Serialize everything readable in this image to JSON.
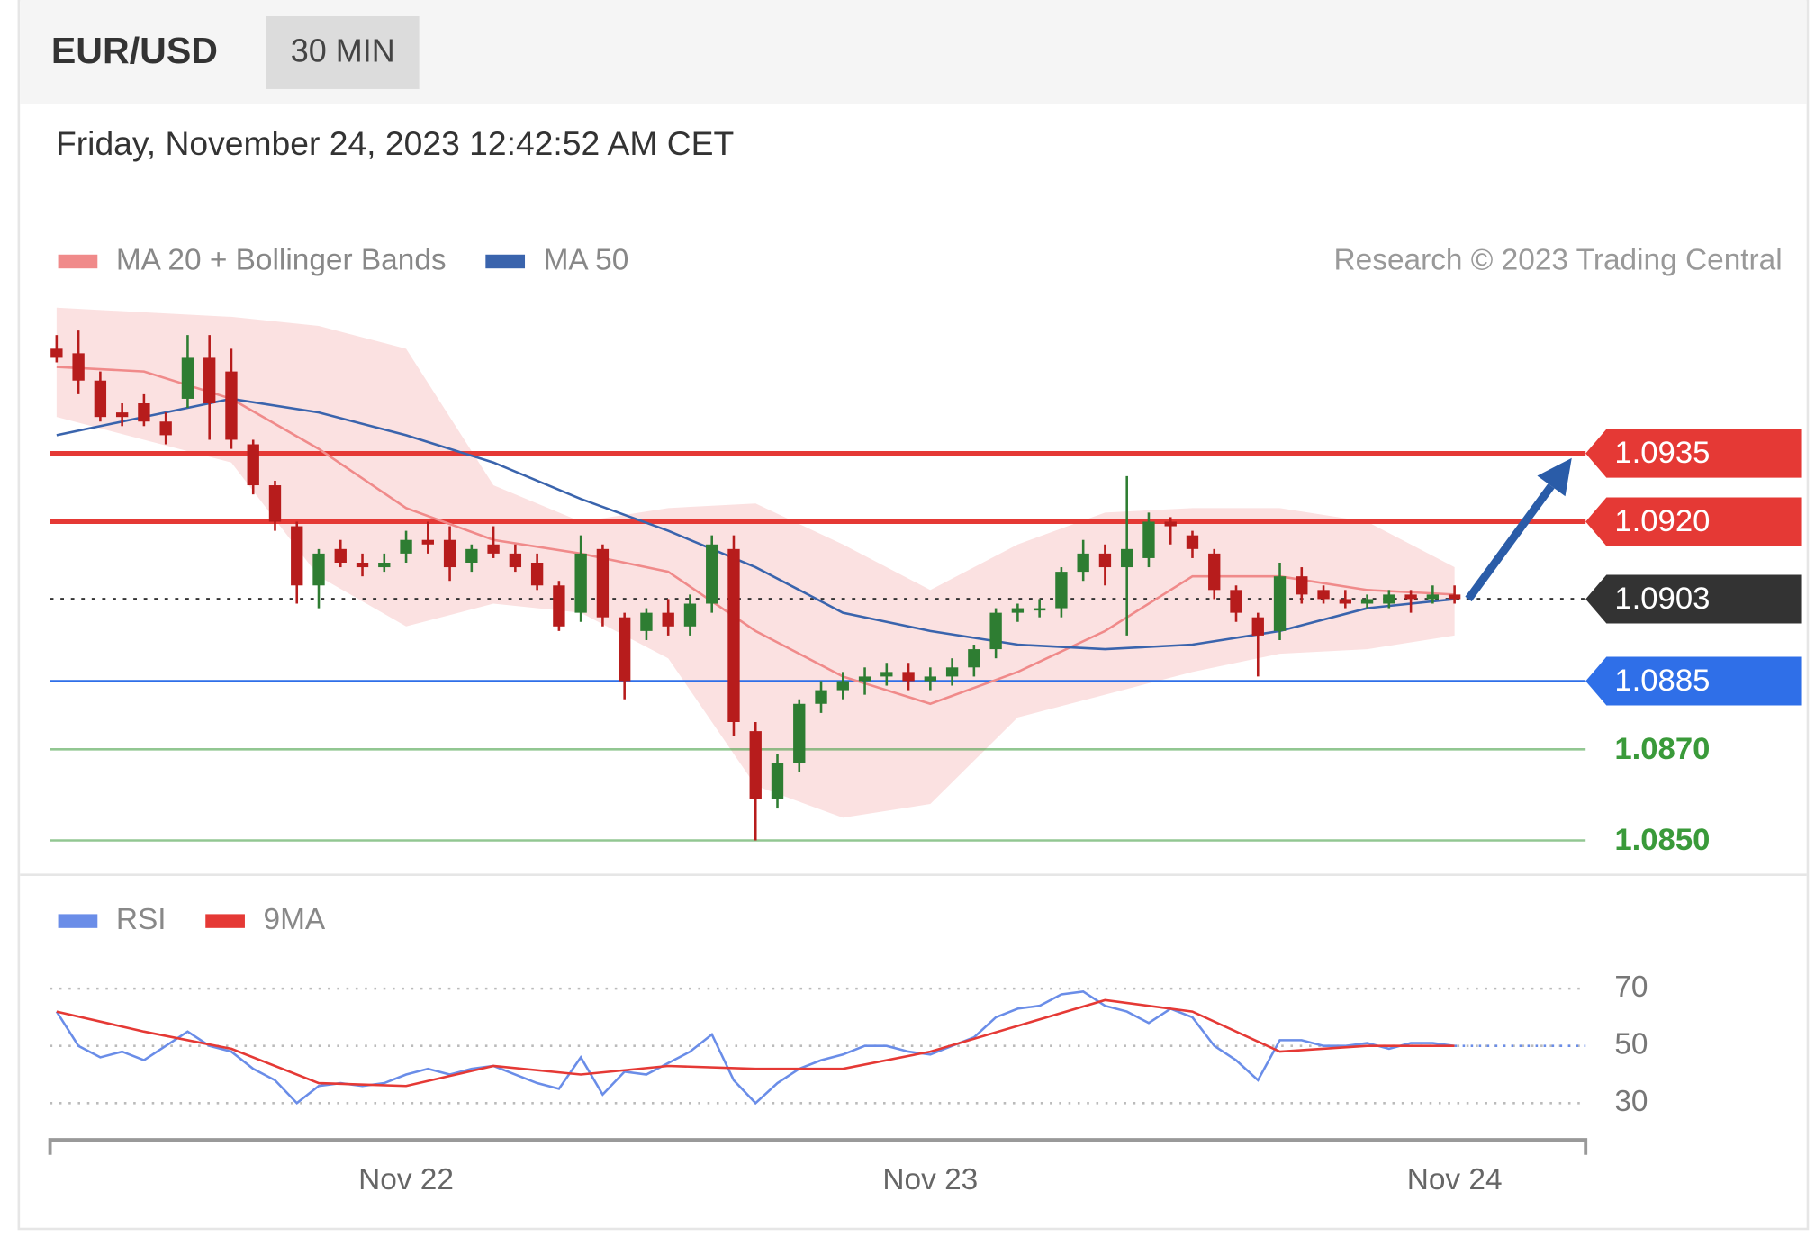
{
  "header": {
    "symbol": "EUR/USD",
    "interval": "30 MIN",
    "timestamp": "Friday, November 24, 2023 12:42:52 AM CET",
    "credit": "Research © 2023 Trading Central"
  },
  "chart_data": [
    {
      "type": "candlestick",
      "up_color": "#2e7d32",
      "down_color": "#b71c1c",
      "ohlc": [
        [
          1.0958,
          1.0961,
          1.0955,
          1.0956
        ],
        [
          1.0957,
          1.0962,
          1.0948,
          1.0951
        ],
        [
          1.0951,
          1.0953,
          1.0942,
          1.0943
        ],
        [
          1.0944,
          1.0946,
          1.0941,
          1.0943
        ],
        [
          1.0946,
          1.0948,
          1.0941,
          1.0942
        ],
        [
          1.0942,
          1.0944,
          1.0937,
          1.0939
        ],
        [
          1.0947,
          1.0961,
          1.0945,
          1.0956
        ],
        [
          1.0956,
          1.0961,
          1.0938,
          1.0946
        ],
        [
          1.0953,
          1.0958,
          1.0936,
          1.0938
        ],
        [
          1.0937,
          1.0938,
          1.0926,
          1.0928
        ],
        [
          1.0928,
          1.0929,
          1.0918,
          1.092
        ],
        [
          1.0919,
          1.092,
          1.0902,
          1.0906
        ],
        [
          1.0906,
          1.0914,
          1.0901,
          1.0913
        ],
        [
          1.0914,
          1.0916,
          1.091,
          1.0911
        ],
        [
          1.0911,
          1.0913,
          1.0908,
          1.091
        ],
        [
          1.091,
          1.0913,
          1.0909,
          1.0911
        ],
        [
          1.0913,
          1.0918,
          1.0911,
          1.0916
        ],
        [
          1.0916,
          1.092,
          1.0913,
          1.0915
        ],
        [
          1.0916,
          1.0919,
          1.0907,
          1.091
        ],
        [
          1.0911,
          1.0915,
          1.0909,
          1.0914
        ],
        [
          1.0915,
          1.0919,
          1.0912,
          1.0913
        ],
        [
          1.0913,
          1.0915,
          1.0909,
          1.091
        ],
        [
          1.0911,
          1.0913,
          1.0905,
          1.0906
        ],
        [
          1.0906,
          1.0907,
          1.0896,
          1.0897
        ],
        [
          1.09,
          1.0917,
          1.0898,
          1.0913
        ],
        [
          1.0914,
          1.0915,
          1.0897,
          1.0899
        ],
        [
          1.0899,
          1.09,
          1.0881,
          1.0885
        ],
        [
          1.0896,
          1.0901,
          1.0894,
          1.09
        ],
        [
          1.09,
          1.0903,
          1.0895,
          1.0897
        ],
        [
          1.0897,
          1.0904,
          1.0895,
          1.0902
        ],
        [
          1.0902,
          1.0917,
          1.09,
          1.0915
        ],
        [
          1.0914,
          1.0917,
          1.0873,
          1.0876
        ],
        [
          1.0874,
          1.0876,
          1.085,
          1.0859
        ],
        [
          1.0859,
          1.0869,
          1.0857,
          1.0867
        ],
        [
          1.0867,
          1.0881,
          1.0865,
          1.088
        ],
        [
          1.088,
          1.0885,
          1.0878,
          1.0883
        ],
        [
          1.0883,
          1.0887,
          1.0881,
          1.0885
        ],
        [
          1.0885,
          1.0888,
          1.0882,
          1.0886
        ],
        [
          1.0886,
          1.0889,
          1.0884,
          1.0887
        ],
        [
          1.0887,
          1.0889,
          1.0883,
          1.0885
        ],
        [
          1.0885,
          1.0888,
          1.0883,
          1.0886
        ],
        [
          1.0886,
          1.089,
          1.0884,
          1.0888
        ],
        [
          1.0888,
          1.0893,
          1.0886,
          1.0892
        ],
        [
          1.0892,
          1.0901,
          1.089,
          1.09
        ],
        [
          1.09,
          1.0902,
          1.0898,
          1.0901
        ],
        [
          1.0901,
          1.0903,
          1.0899,
          1.0901
        ],
        [
          1.0901,
          1.091,
          1.0899,
          1.0909
        ],
        [
          1.0909,
          1.0916,
          1.0907,
          1.0913
        ],
        [
          1.0913,
          1.0915,
          1.0906,
          1.091
        ],
        [
          1.091,
          1.093,
          1.0895,
          1.0914
        ],
        [
          1.0912,
          1.0922,
          1.091,
          1.092
        ],
        [
          1.092,
          1.0921,
          1.0915,
          1.0919
        ],
        [
          1.0917,
          1.0918,
          1.0912,
          1.0914
        ],
        [
          1.0913,
          1.0914,
          1.0903,
          1.0905
        ],
        [
          1.0905,
          1.0906,
          1.0898,
          1.09
        ],
        [
          1.0899,
          1.09,
          1.0886,
          1.0895
        ],
        [
          1.0896,
          1.0911,
          1.0894,
          1.0908
        ],
        [
          1.0908,
          1.091,
          1.0902,
          1.0904
        ],
        [
          1.0905,
          1.0906,
          1.0902,
          1.0903
        ],
        [
          1.0903,
          1.0905,
          1.0901,
          1.0902
        ],
        [
          1.0902,
          1.0904,
          1.0901,
          1.0903
        ],
        [
          1.0902,
          1.0905,
          1.0901,
          1.0904
        ],
        [
          1.0904,
          1.0905,
          1.09,
          1.0903
        ],
        [
          1.0903,
          1.0906,
          1.0902,
          1.0904
        ],
        [
          1.0904,
          1.0906,
          1.0902,
          1.0903
        ]
      ],
      "series": [
        {
          "name": "MA 20 + Bollinger Bands",
          "color": "#f08a8a",
          "band_color": "#fbe1e1",
          "x": [
            0,
            4,
            8,
            12,
            16,
            20,
            24,
            28,
            32,
            36,
            40,
            44,
            48,
            52,
            56,
            60,
            64
          ],
          "values": [
            1.0954,
            1.0953,
            1.0947,
            1.0936,
            1.0923,
            1.0916,
            1.0913,
            1.0909,
            1.0896,
            1.0886,
            1.088,
            1.0887,
            1.0896,
            1.0908,
            1.0908,
            1.0905,
            1.0904
          ],
          "upper": [
            1.0967,
            1.0966,
            1.0965,
            1.0963,
            1.0958,
            1.0928,
            1.092,
            1.0923,
            1.0924,
            1.0915,
            1.0905,
            1.0915,
            1.0922,
            1.0923,
            1.0923,
            1.092,
            1.091
          ],
          "lower": [
            1.0943,
            1.0938,
            1.0933,
            1.0908,
            1.0897,
            1.0902,
            1.09,
            1.089,
            1.0862,
            1.0855,
            1.0858,
            1.0877,
            1.0882,
            1.0887,
            1.0891,
            1.0892,
            1.0895
          ]
        },
        {
          "name": "MA 50",
          "color": "#3a64ad",
          "x": [
            0,
            4,
            8,
            12,
            16,
            20,
            24,
            28,
            32,
            36,
            40,
            44,
            48,
            52,
            56,
            60,
            64
          ],
          "values": [
            1.0939,
            1.0943,
            1.0947,
            1.0944,
            1.0939,
            1.0933,
            1.0925,
            1.0918,
            1.091,
            1.09,
            1.0896,
            1.0893,
            1.0892,
            1.0893,
            1.0896,
            1.0901,
            1.0903
          ]
        }
      ],
      "levels": [
        {
          "value": 1.0935,
          "color": "#e53935",
          "style": "solid",
          "tag": true
        },
        {
          "value": 1.092,
          "label": "1.0920",
          "color": "#e53935",
          "style": "solid",
          "tag": true
        },
        {
          "value": 1.0903,
          "color": "#333333",
          "style": "dotted",
          "tag": true
        },
        {
          "value": 1.0885,
          "color": "#2f6fe8",
          "style": "solid",
          "tag": true
        },
        {
          "value": 1.087,
          "label": "1.0870",
          "color": "#3a9a3a",
          "style": "solid",
          "tag": false
        },
        {
          "value": 1.085,
          "label": "1.0850",
          "color": "#3a9a3a",
          "style": "solid",
          "tag": false
        }
      ],
      "xlim": [
        -0.3,
        70
      ],
      "ylim": [
        1.0846,
        1.0968
      ]
    },
    {
      "type": "line",
      "series": [
        {
          "name": "RSI",
          "color": "#6a8de8",
          "values": [
            62,
            50,
            46,
            48,
            45,
            50,
            55,
            50,
            48,
            42,
            38,
            30,
            36,
            37,
            36,
            37,
            40,
            42,
            40,
            42,
            43,
            40,
            37,
            35,
            46,
            33,
            41,
            40,
            44,
            48,
            54,
            38,
            30,
            37,
            42,
            45,
            47,
            50,
            50,
            48,
            47,
            50,
            53,
            60,
            63,
            64,
            68,
            69,
            64,
            62,
            58,
            63,
            60,
            50,
            45,
            38,
            52,
            52,
            50,
            50,
            51,
            49,
            51,
            51,
            50
          ]
        },
        {
          "name": "9MA",
          "color": "#e53935",
          "x": [
            0,
            4,
            8,
            12,
            16,
            20,
            24,
            28,
            32,
            36,
            40,
            44,
            48,
            52,
            56,
            60,
            64
          ],
          "values": [
            62,
            55,
            49,
            37,
            36,
            43,
            40,
            43,
            42,
            42,
            48,
            57,
            66,
            62,
            48,
            50,
            50
          ]
        }
      ],
      "xlim": [
        -0.3,
        70
      ],
      "ylim": [
        18,
        75
      ],
      "yticks": [
        30,
        50,
        70
      ],
      "xticks": [
        {
          "value": 16,
          "label": "Nov 22"
        },
        {
          "value": 40,
          "label": "Nov 23"
        },
        {
          "value": 64,
          "label": "Nov 24"
        }
      ]
    }
  ]
}
